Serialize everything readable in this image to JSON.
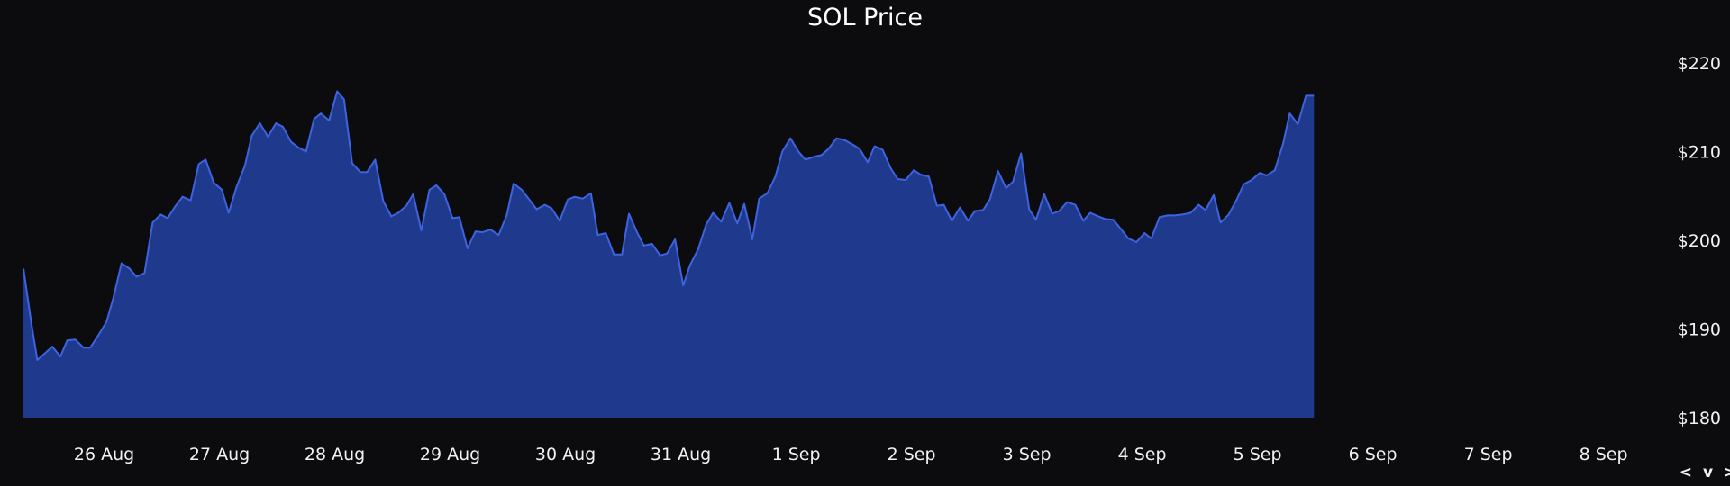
{
  "chart_data": {
    "type": "area",
    "title": "SOL Price",
    "xlabel": "",
    "ylabel": "",
    "x_tick_labels": [
      "26 Aug",
      "27 Aug",
      "28 Aug",
      "29 Aug",
      "30 Aug",
      "31 Aug",
      "1 Sep",
      "2 Sep",
      "3 Sep",
      "4 Sep",
      "5 Sep",
      "6 Sep",
      "7 Sep",
      "8 Sep"
    ],
    "x_range_days": [
      25.3,
      39.3
    ],
    "y_tick_values": [
      180,
      190,
      200,
      210,
      220
    ],
    "y_tick_labels": [
      "$180",
      "$190",
      "$200",
      "$210",
      "$220"
    ],
    "ylim": [
      180,
      220
    ],
    "y_axis_position": "right",
    "grid": false,
    "legend": "none",
    "colors": {
      "fill": "#1f3a8c",
      "line": "#3d63e0",
      "background": "#0c0c0e",
      "text": "#ffffff"
    },
    "series": [
      {
        "points": [
          [
            25.3,
            196.8
          ],
          [
            25.37,
            190.5
          ],
          [
            25.42,
            186.5
          ],
          [
            25.55,
            188.0
          ],
          [
            25.62,
            186.9
          ],
          [
            25.68,
            188.7
          ],
          [
            25.75,
            188.8
          ],
          [
            25.82,
            187.9
          ],
          [
            25.88,
            187.9
          ],
          [
            25.95,
            189.3
          ],
          [
            26.02,
            190.8
          ],
          [
            26.08,
            193.5
          ],
          [
            26.15,
            197.4
          ],
          [
            26.22,
            196.8
          ],
          [
            26.28,
            195.9
          ],
          [
            26.35,
            196.3
          ],
          [
            26.42,
            202.0
          ],
          [
            26.49,
            202.9
          ],
          [
            26.55,
            202.5
          ],
          [
            26.62,
            203.9
          ],
          [
            26.68,
            204.9
          ],
          [
            26.75,
            204.5
          ],
          [
            26.82,
            208.6
          ],
          [
            26.88,
            209.1
          ],
          [
            26.95,
            206.5
          ],
          [
            27.02,
            205.7
          ],
          [
            27.08,
            203.1
          ],
          [
            27.15,
            206.1
          ],
          [
            27.22,
            208.4
          ],
          [
            27.28,
            211.8
          ],
          [
            27.35,
            213.2
          ],
          [
            27.42,
            211.7
          ],
          [
            27.49,
            213.2
          ],
          [
            27.55,
            212.8
          ],
          [
            27.62,
            211.1
          ],
          [
            27.68,
            210.5
          ],
          [
            27.75,
            210.0
          ],
          [
            27.82,
            213.7
          ],
          [
            27.88,
            214.3
          ],
          [
            27.95,
            213.5
          ],
          [
            28.02,
            216.8
          ],
          [
            28.08,
            215.9
          ],
          [
            28.15,
            208.7
          ],
          [
            28.22,
            207.7
          ],
          [
            28.28,
            207.7
          ],
          [
            28.35,
            209.1
          ],
          [
            28.42,
            204.4
          ],
          [
            28.49,
            202.7
          ],
          [
            28.55,
            203.1
          ],
          [
            28.62,
            203.9
          ],
          [
            28.68,
            205.2
          ],
          [
            28.75,
            201.1
          ],
          [
            28.82,
            205.7
          ],
          [
            28.88,
            206.2
          ],
          [
            28.95,
            205.2
          ],
          [
            29.02,
            202.5
          ],
          [
            29.08,
            202.6
          ],
          [
            29.15,
            199.1
          ],
          [
            29.22,
            201.0
          ],
          [
            29.28,
            200.9
          ],
          [
            29.35,
            201.2
          ],
          [
            29.42,
            200.6
          ],
          [
            29.49,
            202.8
          ],
          [
            29.55,
            206.4
          ],
          [
            29.62,
            205.7
          ],
          [
            29.68,
            204.7
          ],
          [
            29.75,
            203.5
          ],
          [
            29.82,
            204.0
          ],
          [
            29.88,
            203.6
          ],
          [
            29.95,
            202.2
          ],
          [
            30.02,
            204.6
          ],
          [
            30.08,
            204.9
          ],
          [
            30.15,
            204.7
          ],
          [
            30.22,
            205.3
          ],
          [
            30.28,
            200.6
          ],
          [
            30.35,
            200.8
          ],
          [
            30.42,
            198.4
          ],
          [
            30.49,
            198.4
          ],
          [
            30.55,
            203.0
          ],
          [
            30.62,
            200.9
          ],
          [
            30.68,
            199.4
          ],
          [
            30.75,
            199.6
          ],
          [
            30.82,
            198.3
          ],
          [
            30.88,
            198.5
          ],
          [
            30.95,
            200.1
          ],
          [
            31.02,
            194.9
          ],
          [
            31.08,
            197.2
          ],
          [
            31.15,
            199.0
          ],
          [
            31.22,
            201.8
          ],
          [
            31.28,
            203.1
          ],
          [
            31.35,
            202.1
          ],
          [
            31.42,
            204.2
          ],
          [
            31.49,
            201.9
          ],
          [
            31.55,
            204.1
          ],
          [
            31.62,
            200.1
          ],
          [
            31.68,
            204.7
          ],
          [
            31.75,
            205.3
          ],
          [
            31.82,
            207.2
          ],
          [
            31.88,
            210.0
          ],
          [
            31.95,
            211.5
          ],
          [
            32.02,
            210.0
          ],
          [
            32.08,
            209.1
          ],
          [
            32.15,
            209.4
          ],
          [
            32.22,
            209.6
          ],
          [
            32.28,
            210.3
          ],
          [
            32.35,
            211.5
          ],
          [
            32.42,
            211.3
          ],
          [
            32.49,
            210.8
          ],
          [
            32.55,
            210.3
          ],
          [
            32.62,
            208.8
          ],
          [
            32.68,
            210.6
          ],
          [
            32.75,
            210.2
          ],
          [
            32.82,
            208.1
          ],
          [
            32.88,
            206.9
          ],
          [
            32.95,
            206.8
          ],
          [
            33.02,
            207.9
          ],
          [
            33.08,
            207.4
          ],
          [
            33.15,
            207.2
          ],
          [
            33.22,
            203.9
          ],
          [
            33.28,
            204.0
          ],
          [
            33.35,
            202.2
          ],
          [
            33.42,
            203.7
          ],
          [
            33.49,
            202.2
          ],
          [
            33.55,
            203.3
          ],
          [
            33.62,
            203.4
          ],
          [
            33.68,
            204.6
          ],
          [
            33.75,
            207.8
          ],
          [
            33.82,
            205.9
          ],
          [
            33.88,
            206.6
          ],
          [
            33.95,
            209.8
          ],
          [
            34.02,
            203.5
          ],
          [
            34.08,
            202.3
          ],
          [
            34.15,
            205.2
          ],
          [
            34.22,
            203.0
          ],
          [
            34.28,
            203.3
          ],
          [
            34.35,
            204.3
          ],
          [
            34.42,
            204.0
          ],
          [
            34.49,
            202.2
          ],
          [
            34.55,
            203.1
          ],
          [
            34.62,
            202.7
          ],
          [
            34.68,
            202.4
          ],
          [
            34.75,
            202.3
          ],
          [
            34.82,
            201.2
          ],
          [
            34.88,
            200.2
          ],
          [
            34.95,
            199.8
          ],
          [
            35.02,
            200.8
          ],
          [
            35.08,
            200.2
          ],
          [
            35.15,
            202.6
          ],
          [
            35.22,
            202.8
          ],
          [
            35.28,
            202.8
          ],
          [
            35.35,
            202.9
          ],
          [
            35.42,
            203.1
          ],
          [
            35.49,
            204.0
          ],
          [
            35.55,
            203.4
          ],
          [
            35.62,
            205.1
          ],
          [
            35.68,
            202.0
          ],
          [
            35.75,
            202.9
          ],
          [
            35.82,
            204.6
          ],
          [
            35.88,
            206.3
          ],
          [
            35.95,
            206.8
          ],
          [
            36.02,
            207.6
          ],
          [
            36.08,
            207.3
          ],
          [
            36.15,
            207.9
          ],
          [
            36.22,
            210.8
          ],
          [
            36.28,
            214.3
          ],
          [
            36.35,
            213.1
          ],
          [
            36.42,
            216.3
          ],
          [
            36.49,
            216.3
          ]
        ]
      }
    ]
  },
  "nav": {
    "glyphs": "< v >",
    "prev_icon": "chevron-left-icon",
    "toggle_icon": "chevron-down-icon",
    "next_icon": "chevron-right-icon"
  }
}
